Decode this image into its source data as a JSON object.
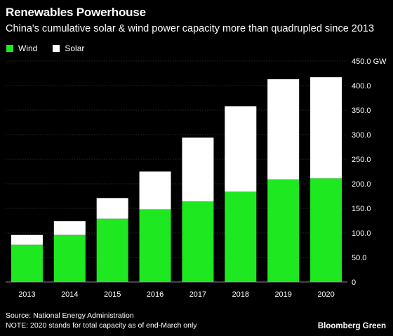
{
  "title": "Renewables Powerhouse",
  "subtitle": "China's cumulative solar & wind power capacity more than quadrupled since 2013",
  "source": "Source: National Energy Administration",
  "note": "NOTE: 2020 stands for total capacity as of end-March only",
  "brand": "Bloomberg Green",
  "colors": {
    "wind": "#1ee820",
    "solar": "#ffffff",
    "background": "#000000",
    "grid": "#555555"
  },
  "chart_data": {
    "type": "bar",
    "stacked": true,
    "categories": [
      "2013",
      "2014",
      "2015",
      "2016",
      "2017",
      "2018",
      "2019",
      "2020"
    ],
    "series": [
      {
        "name": "Wind",
        "values": [
          76,
          96,
          129,
          148,
          164,
          184,
          209,
          211
        ]
      },
      {
        "name": "Solar",
        "values": [
          20,
          28,
          42,
          77,
          130,
          174,
          204,
          206
        ]
      }
    ],
    "ylim": [
      0,
      450
    ],
    "yticks": [
      0,
      50,
      100,
      150,
      200,
      250,
      300,
      350,
      400,
      450
    ],
    "ytick_labels": [
      "0",
      "50.0",
      "100.0",
      "150.0",
      "200.0",
      "250.0",
      "300.0",
      "350.0",
      "400.0",
      "450.0 GW"
    ],
    "grid": true,
    "legend": "top-left"
  }
}
